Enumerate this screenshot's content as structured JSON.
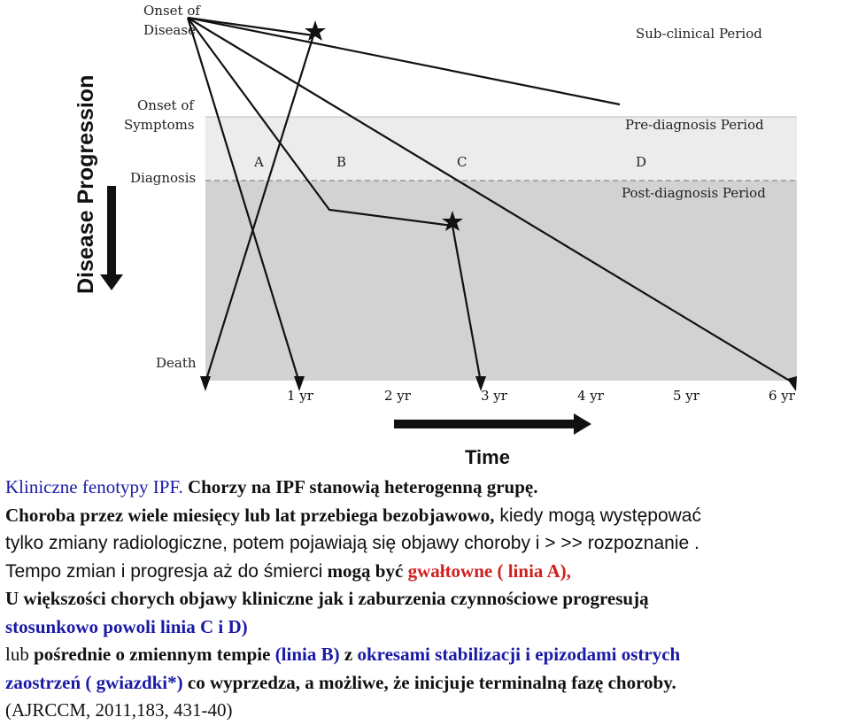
{
  "diagram": {
    "stages": {
      "onset_of_disease": [
        "Onset of",
        "Disease"
      ],
      "onset_of_symptoms": [
        "Onset of",
        "Symptoms"
      ],
      "diagnosis": "Diagnosis",
      "death": "Death"
    },
    "periods": {
      "sub_clinical": "Sub-clinical Period",
      "pre_diagnosis": "Pre-diagnosis Period",
      "post_diagnosis": "Post-diagnosis Period"
    },
    "line_labels": [
      "A",
      "B",
      "C",
      "D"
    ],
    "y_axis_label": "Disease Progression",
    "x_axis_label": "Time",
    "time_ticks": [
      "1 yr",
      "2 yr",
      "3 yr",
      "4 yr",
      "5 yr",
      "6 yr"
    ],
    "colors": {
      "pre_diagnosis_band": "#ececec",
      "post_diagnosis_band": "#d2d2d2",
      "lines": "#111111"
    }
  },
  "caption": {
    "l1_a": "Kliniczne fenotypy IPF.",
    "l1_b": " Chorzy na IPF stanowią heterogenną grupę.",
    "l2_a": "Choroba przez wiele miesięcy lub lat przebiega bezobjawowo,",
    "l2_b": " kiedy mogą występować",
    "l3": "tylko zmiany radiologiczne, potem pojawiają się objawy choroby i > >> rozpoznanie .",
    "l4_a": "Tempo zmian i progresja aż do śmierci",
    "l4_b": " mogą być",
    "l4_c": " gwałtowne ( linia A),",
    "l5": "U większości chorych objawy kliniczne jak i zaburzenia czynnościowe progresują",
    "l6": "stosunkowo powoli   linia C i D)",
    "l7_a": "lub",
    "l7_b": " pośrednie o zmiennym tempie",
    "l7_c": " (linia B)",
    "l7_d": " z",
    "l7_e": " okresami stabilizacji i epizodami ostrych",
    "l8_a": "zaostrzeń ( gwiazdki*)",
    "l8_b": " co wyprzedza, a możliwe, że inicjuje  terminalną fazę choroby.",
    "l9": "(AJRCCM, 2011,183, 431-40)"
  }
}
